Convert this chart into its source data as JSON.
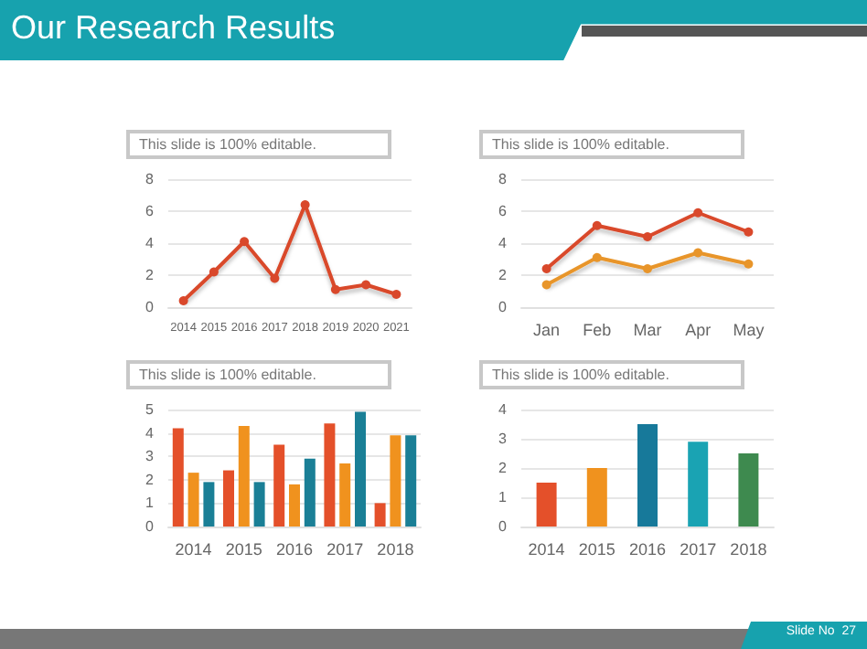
{
  "chart_data": [
    {
      "type": "line",
      "title": "Our Research Results",
      "annotations": [
        "Slide No  27"
      ],
      "subtitle": "This slide is 100% editable.",
      "categories": [
        "2014",
        "2015",
        "2016",
        "2017",
        "2018",
        "2019",
        "2020",
        "2021"
      ],
      "series": [
        {
          "color": "#d9482b",
          "values": [
            0.4,
            2.2,
            4.1,
            1.8,
            6.4,
            1.1,
            1.4,
            0.8
          ]
        }
      ],
      "ylim": [
        0,
        8
      ],
      "yticks": [
        0,
        2,
        4,
        6,
        8
      ],
      "grid": "y",
      "marker": "circle"
    },
    {
      "type": "line",
      "subtitle": "This slide is 100% editable.",
      "categories": [
        "Jan",
        "Feb",
        "Mar",
        "Apr",
        "May"
      ],
      "series": [
        {
          "color": "#d9482b",
          "values": [
            2.4,
            5.1,
            4.4,
            5.9,
            4.7
          ]
        },
        {
          "color": "#e8952a",
          "values": [
            1.4,
            3.1,
            2.4,
            3.4,
            2.7
          ]
        }
      ],
      "ylim": [
        0,
        8
      ],
      "yticks": [
        0,
        2,
        4,
        6,
        8
      ],
      "grid": "y",
      "marker": "circle"
    },
    {
      "type": "bar",
      "subtitle": "This slide is 100% editable.",
      "categories": [
        "2014",
        "2015",
        "2016",
        "2017",
        "2018"
      ],
      "series": [
        {
          "color": "#e4502a",
          "values": [
            4.2,
            2.4,
            3.5,
            4.4,
            1.0
          ]
        },
        {
          "color": "#f0921e",
          "values": [
            2.3,
            4.3,
            1.8,
            2.7,
            3.9
          ]
        },
        {
          "color": "#1a7f96",
          "values": [
            1.9,
            1.9,
            2.9,
            4.9,
            3.9
          ]
        }
      ],
      "ylim": [
        0,
        5
      ],
      "yticks": [
        0,
        1,
        2,
        3,
        4,
        5
      ],
      "grid": "y"
    },
    {
      "type": "bar",
      "subtitle": "This slide is 100% editable.",
      "categories": [
        "2014",
        "2015",
        "2016",
        "2017",
        "2018"
      ],
      "values": [
        1.5,
        2.0,
        3.5,
        2.9,
        2.5
      ],
      "colors": [
        "#e4502a",
        "#f0921e",
        "#17799a",
        "#1aa3b3",
        "#3e8a4f"
      ],
      "ylim": [
        0,
        4
      ],
      "yticks": [
        0,
        1,
        2,
        3,
        4
      ],
      "grid": "y"
    }
  ]
}
